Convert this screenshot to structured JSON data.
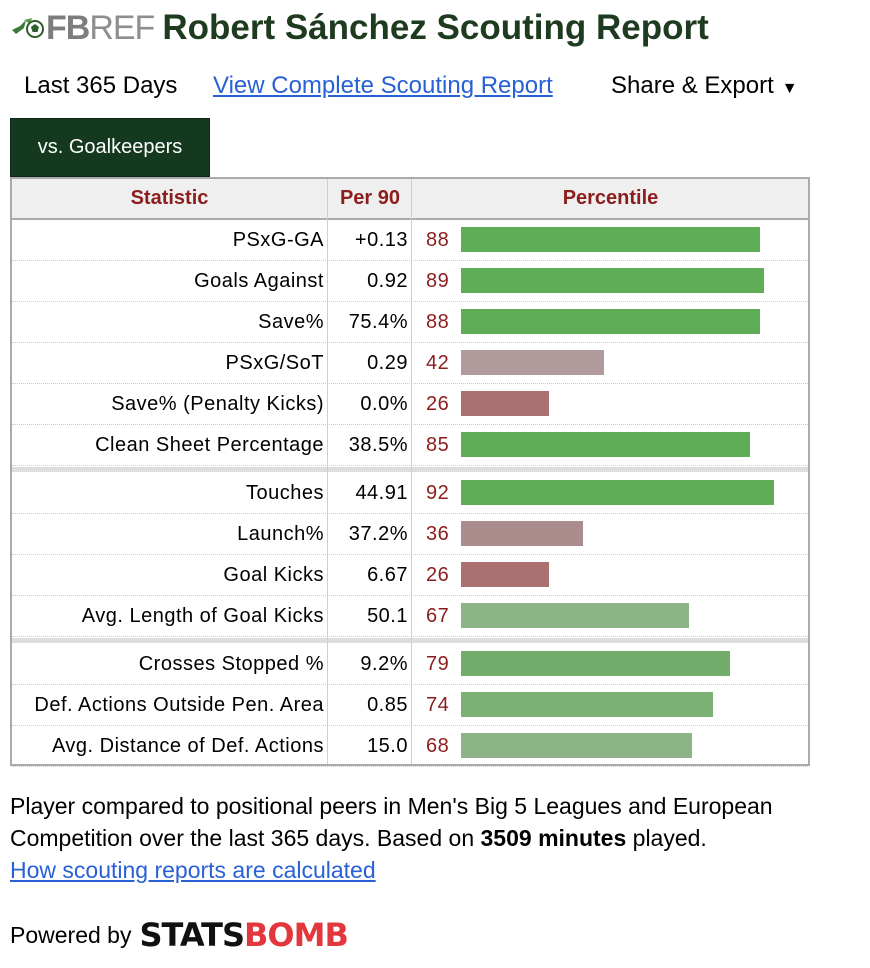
{
  "site": {
    "logo_prefix": "FB",
    "logo_suffix": "REF"
  },
  "title": "Robert Sánchez Scouting Report",
  "subnav": {
    "period": "Last 365 Days",
    "report_link": "View Complete Scouting Report",
    "share_label": "Share & Export",
    "share_caret": "▼"
  },
  "tab": {
    "label": "vs. Goalkeepers"
  },
  "table": {
    "headers": {
      "statistic": "Statistic",
      "per90": "Per 90",
      "percentile": "Percentile"
    },
    "groups": [
      [
        {
          "stat": "PSxG-GA",
          "per90": "+0.13",
          "percentile": "88",
          "percentile_value": 88,
          "bar_color": "#5fad56"
        },
        {
          "stat": "Goals Against",
          "per90": "0.92",
          "percentile": "89",
          "percentile_value": 89,
          "bar_color": "#5fad56"
        },
        {
          "stat": "Save%",
          "per90": "75.4%",
          "percentile": "88",
          "percentile_value": 88,
          "bar_color": "#5fad56"
        },
        {
          "stat": "PSxG/SoT",
          "per90": "0.29",
          "percentile": "42",
          "percentile_value": 42,
          "bar_color": "#b19a9b"
        },
        {
          "stat": "Save% (Penalty Kicks)",
          "per90": "0.0%",
          "percentile": "26",
          "percentile_value": 26,
          "bar_color": "#ab7170"
        },
        {
          "stat": "Clean Sheet Percentage",
          "per90": "38.5%",
          "percentile": "85",
          "percentile_value": 85,
          "bar_color": "#5fad56"
        }
      ],
      [
        {
          "stat": "Touches",
          "per90": "44.91",
          "percentile": "92",
          "percentile_value": 92,
          "bar_color": "#5fad56"
        },
        {
          "stat": "Launch%",
          "per90": "37.2%",
          "percentile": "36",
          "percentile_value": 36,
          "bar_color": "#ab8c8c"
        },
        {
          "stat": "Goal Kicks",
          "per90": "6.67",
          "percentile": "26",
          "percentile_value": 26,
          "bar_color": "#ab7170"
        },
        {
          "stat": "Avg. Length of Goal Kicks",
          "per90": "50.1",
          "percentile": "67",
          "percentile_value": 67,
          "bar_color": "#8db487"
        }
      ],
      [
        {
          "stat": "Crosses Stopped %",
          "per90": "9.2%",
          "percentile": "79",
          "percentile_value": 79,
          "bar_color": "#72ad6b"
        },
        {
          "stat": "Def. Actions Outside Pen. Area",
          "per90": "0.85",
          "percentile": "74",
          "percentile_value": 74,
          "bar_color": "#7cb175"
        },
        {
          "stat": "Avg. Distance of Def. Actions",
          "per90": "15.0",
          "percentile": "68",
          "percentile_value": 68,
          "bar_color": "#8db487"
        }
      ]
    ]
  },
  "footnote": {
    "text_before": "Player compared to positional peers in Men's Big 5 Leagues and European Competition over the last 365 days. Based on ",
    "minutes_bold": "3509 minutes",
    "text_after": " played.",
    "calc_link": "How scouting reports are calculated"
  },
  "powered": {
    "label": "Powered by",
    "brand_part1": "STATS",
    "brand_part2": "BOMB"
  },
  "colors": {
    "title": "#1f3b1f",
    "tab_bg": "#15391f",
    "header_text": "#8c1d1d",
    "link": "#2860d6",
    "brand_red": "#e2383d"
  }
}
